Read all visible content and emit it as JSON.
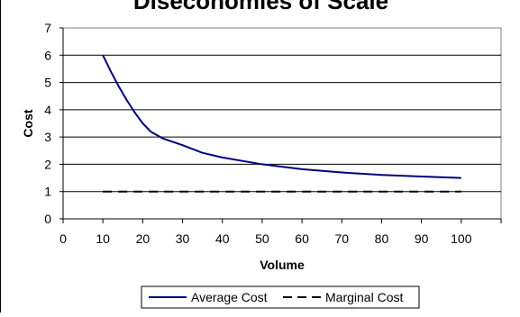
{
  "chart_data": {
    "type": "line",
    "title": "Diseconomies of Scale",
    "xlabel": "Volume",
    "ylabel": "Cost",
    "xlim": [
      0,
      110
    ],
    "ylim": [
      0,
      7
    ],
    "x_ticks": [
      "0",
      "10",
      "20",
      "30",
      "40",
      "50",
      "60",
      "70",
      "80",
      "90",
      "100"
    ],
    "y_ticks": [
      "0",
      "1",
      "2",
      "3",
      "4",
      "5",
      "6",
      "7"
    ],
    "grid": "horizontal",
    "legend_position": "bottom",
    "series": [
      {
        "name": "Average Cost",
        "style": "solid",
        "color": "#000080",
        "x": [
          10,
          12,
          14,
          16,
          18,
          20,
          22,
          25,
          30,
          35,
          40,
          50,
          60,
          70,
          80,
          90,
          100
        ],
        "y": [
          6.0,
          5.4,
          4.85,
          4.35,
          3.9,
          3.5,
          3.2,
          2.95,
          2.7,
          2.42,
          2.25,
          2.0,
          1.82,
          1.7,
          1.61,
          1.55,
          1.5
        ]
      },
      {
        "name": "Marginal Cost",
        "style": "dashed",
        "color": "#000000",
        "x": [
          10,
          100
        ],
        "y": [
          1,
          1
        ]
      }
    ]
  }
}
